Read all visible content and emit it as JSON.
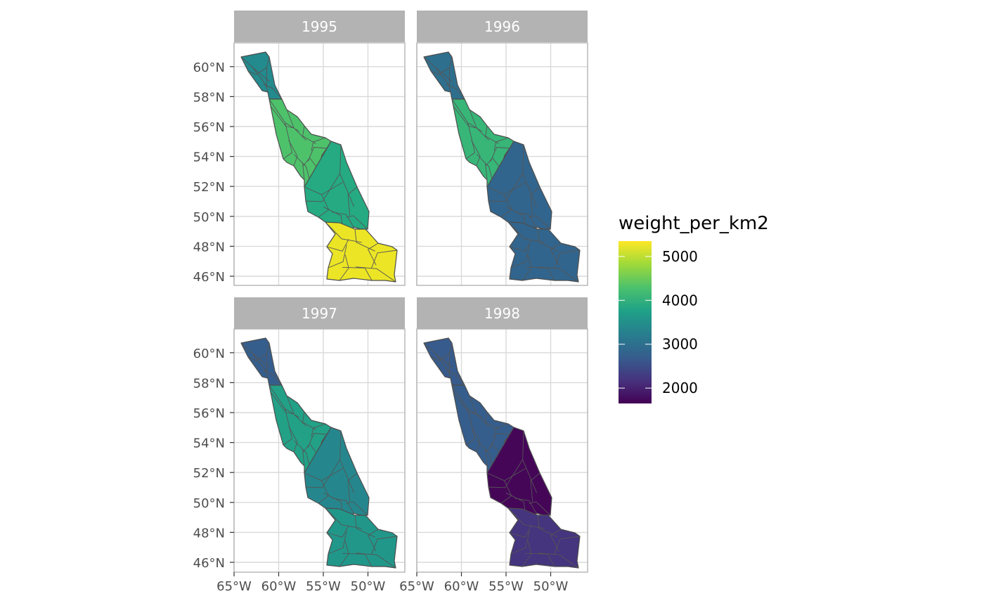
{
  "chart_data": {
    "type": "map",
    "facet_variable": "year",
    "panels": [
      {
        "label": "1995",
        "regions": [
          {
            "zone": "north",
            "lat": [
              58.0,
              60.8
            ],
            "weight_per_km2": 3400
          },
          {
            "zone": "upper-middle",
            "lat": [
              54.0,
              58.0
            ],
            "weight_per_km2": 4300
          },
          {
            "zone": "middle",
            "lat": [
              49.0,
              54.0
            ],
            "weight_per_km2": 3900
          },
          {
            "zone": "south",
            "lat": [
              46.0,
              49.0
            ],
            "weight_per_km2": 5250
          }
        ]
      },
      {
        "label": "1996",
        "regions": [
          {
            "zone": "north",
            "lat": [
              58.0,
              60.8
            ],
            "weight_per_km2": 3000
          },
          {
            "zone": "upper-middle",
            "lat": [
              54.0,
              58.0
            ],
            "weight_per_km2": 4100
          },
          {
            "zone": "middle",
            "lat": [
              49.0,
              54.0
            ],
            "weight_per_km2": 2850
          },
          {
            "zone": "south",
            "lat": [
              46.0,
              49.0
            ],
            "weight_per_km2": 2850
          }
        ]
      },
      {
        "label": "1997",
        "regions": [
          {
            "zone": "north",
            "lat": [
              58.0,
              60.8
            ],
            "weight_per_km2": 2750
          },
          {
            "zone": "upper-middle",
            "lat": [
              54.0,
              58.0
            ],
            "weight_per_km2": 3750
          },
          {
            "zone": "middle",
            "lat": [
              49.0,
              54.0
            ],
            "weight_per_km2": 3350
          },
          {
            "zone": "south",
            "lat": [
              46.0,
              49.0
            ],
            "weight_per_km2": 3600
          }
        ]
      },
      {
        "label": "1998",
        "regions": [
          {
            "zone": "north",
            "lat": [
              58.0,
              60.8
            ],
            "weight_per_km2": 2700
          },
          {
            "zone": "upper-middle",
            "lat": [
              54.0,
              58.0
            ],
            "weight_per_km2": 2750
          },
          {
            "zone": "middle",
            "lat": [
              49.0,
              54.0
            ],
            "weight_per_km2": 1700
          },
          {
            "zone": "south",
            "lat": [
              46.0,
              49.0
            ],
            "weight_per_km2": 2200
          }
        ]
      }
    ],
    "x_ticks": [
      "65°W",
      "60°W",
      "55°W",
      "50°W"
    ],
    "y_ticks": [
      "46°N",
      "48°N",
      "50°N",
      "52°N",
      "54°N",
      "56°N",
      "58°N",
      "60°N"
    ],
    "x_range_deg_lon": [
      -65.2,
      -46.2
    ],
    "y_range_deg_lat": [
      45.3,
      61.8
    ],
    "legend": {
      "title": "weight_per_km2",
      "position": "right",
      "breaks": [
        "5000",
        "4000",
        "3000",
        "2000"
      ],
      "range": [
        1650,
        5350
      ],
      "palette": "viridis"
    },
    "grid": true
  }
}
